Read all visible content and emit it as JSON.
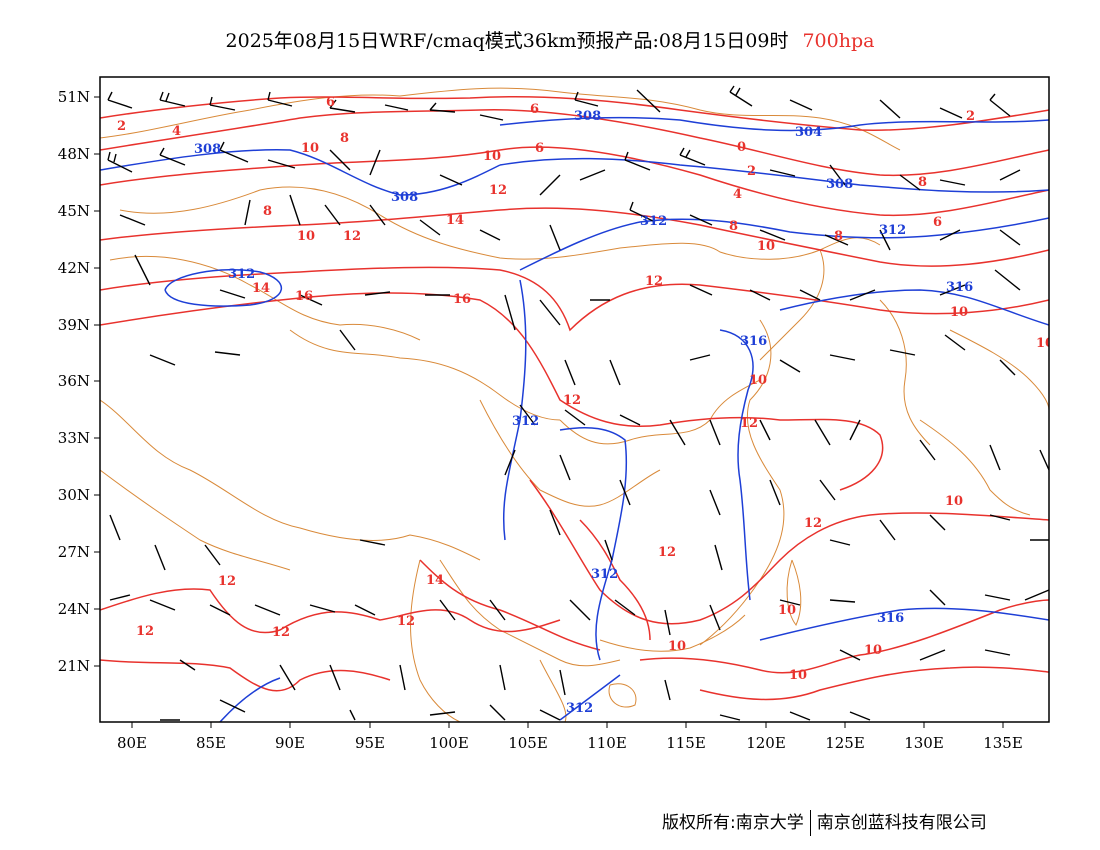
{
  "header": {
    "title": "2025年08月15日WRF/cmaq模式36km预报产品:08月15日09时",
    "level": "700hpa"
  },
  "footer": {
    "copyright": "版权所有:南京大学",
    "company": "南京创蓝科技有限公司"
  },
  "axes": {
    "lat_labels": [
      "51N",
      "48N",
      "45N",
      "42N",
      "39N",
      "36N",
      "33N",
      "30N",
      "27N",
      "24N",
      "21N"
    ],
    "lon_labels": [
      "80E",
      "85E",
      "90E",
      "95E",
      "100E",
      "105E",
      "110E",
      "115E",
      "120E",
      "125E",
      "130E",
      "135E"
    ]
  },
  "colors": {
    "temperature_contour": "#e8322d",
    "geopotential_contour": "#1e3fd6",
    "boundary": "#d98a3a",
    "wind_barb": "#000000",
    "level_text": "#e8322d"
  },
  "temperature_labels": [
    "2",
    "4",
    "6",
    "6",
    "8",
    "8",
    "10",
    "10",
    "10",
    "12",
    "12",
    "14",
    "14",
    "16",
    "16",
    "0",
    "2",
    "4",
    "8",
    "10",
    "6",
    "8",
    "2",
    "8",
    "6",
    "10",
    "10",
    "12",
    "12",
    "12",
    "10",
    "12",
    "14",
    "12",
    "12",
    "12",
    "12",
    "12",
    "10",
    "10",
    "10",
    "10",
    "10"
  ],
  "height_labels": [
    "308",
    "308",
    "308",
    "304",
    "308",
    "312",
    "312",
    "312",
    "316",
    "316",
    "312",
    "312",
    "312",
    "316"
  ]
}
